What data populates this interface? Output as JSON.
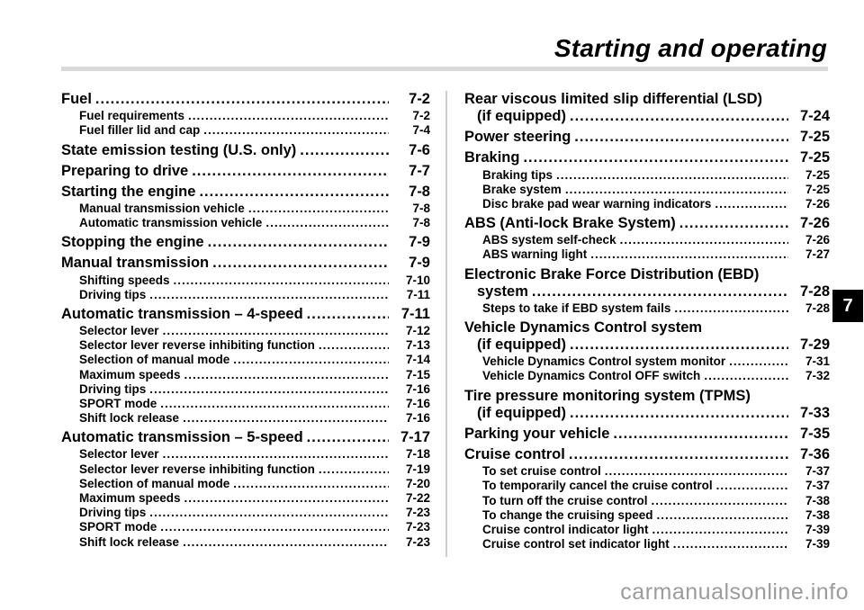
{
  "header": {
    "title": "Starting and operating"
  },
  "chapter_tab": {
    "label": "7"
  },
  "watermark": {
    "text": "carmanualsonline.info"
  },
  "toc": {
    "left_column": [
      {
        "level": 1,
        "label": "Fuel",
        "page": "7-2"
      },
      {
        "level": 2,
        "label": "Fuel requirements",
        "page": "7-2"
      },
      {
        "level": 2,
        "label": "Fuel filler lid and cap",
        "page": "7-4"
      },
      {
        "level": 1,
        "label": "State emission testing (U.S. only)",
        "page": "7-6"
      },
      {
        "level": 1,
        "label": "Preparing to drive",
        "page": "7-7"
      },
      {
        "level": 1,
        "label": "Starting the engine",
        "page": "7-8"
      },
      {
        "level": 2,
        "label": "Manual transmission vehicle",
        "page": "7-8"
      },
      {
        "level": 2,
        "label": "Automatic transmission vehicle",
        "page": "7-8"
      },
      {
        "level": 1,
        "label": "Stopping the engine",
        "page": "7-9"
      },
      {
        "level": 1,
        "label": "Manual transmission",
        "page": "7-9"
      },
      {
        "level": 2,
        "label": "Shifting speeds",
        "page": "7-10"
      },
      {
        "level": 2,
        "label": "Driving tips",
        "page": "7-11"
      },
      {
        "level": 1,
        "label": "Automatic transmission – 4-speed",
        "page": "7-11"
      },
      {
        "level": 2,
        "label": "Selector lever",
        "page": "7-12"
      },
      {
        "level": 2,
        "label": "Selector lever reverse inhibiting function",
        "page": "7-13"
      },
      {
        "level": 2,
        "label": "Selection of manual mode",
        "page": "7-14"
      },
      {
        "level": 2,
        "label": "Maximum speeds",
        "page": "7-15"
      },
      {
        "level": 2,
        "label": "Driving tips",
        "page": "7-16"
      },
      {
        "level": 2,
        "label": "SPORT mode",
        "page": "7-16"
      },
      {
        "level": 2,
        "label": "Shift lock release",
        "page": "7-16"
      },
      {
        "level": 1,
        "label": "Automatic transmission – 5-speed",
        "page": "7-17"
      },
      {
        "level": 2,
        "label": "Selector lever",
        "page": "7-18"
      },
      {
        "level": 2,
        "label": "Selector lever reverse inhibiting function",
        "page": "7-19"
      },
      {
        "level": 2,
        "label": "Selection of manual mode",
        "page": "7-20"
      },
      {
        "level": 2,
        "label": "Maximum speeds",
        "page": "7-22"
      },
      {
        "level": 2,
        "label": "Driving tips",
        "page": "7-23"
      },
      {
        "level": 2,
        "label": "SPORT mode",
        "page": "7-23"
      },
      {
        "level": 2,
        "label": "Shift lock release",
        "page": "7-23"
      }
    ],
    "right_column": [
      {
        "level": 1,
        "label": "Rear viscous limited slip differential (LSD)",
        "label2": "(if equipped)",
        "page": "7-24"
      },
      {
        "level": 1,
        "label": "Power steering",
        "page": "7-25"
      },
      {
        "level": 1,
        "label": "Braking",
        "page": "7-25"
      },
      {
        "level": 2,
        "label": "Braking tips",
        "page": "7-25"
      },
      {
        "level": 2,
        "label": "Brake system",
        "page": "7-25"
      },
      {
        "level": 2,
        "label": "Disc brake pad wear warning indicators",
        "page": "7-26"
      },
      {
        "level": 1,
        "label": "ABS (Anti-lock Brake System)",
        "page": "7-26"
      },
      {
        "level": 2,
        "label": "ABS system self-check",
        "page": "7-26"
      },
      {
        "level": 2,
        "label": "ABS warning light",
        "page": "7-27"
      },
      {
        "level": 1,
        "label": "Electronic Brake Force Distribution (EBD)",
        "label2": "system",
        "page": "7-28"
      },
      {
        "level": 2,
        "label": "Steps to take if EBD system fails",
        "page": "7-28"
      },
      {
        "level": 1,
        "label": "Vehicle Dynamics Control system",
        "label2": "(if equipped)",
        "page": "7-29"
      },
      {
        "level": 2,
        "label": "Vehicle Dynamics Control system monitor",
        "page": "7-31"
      },
      {
        "level": 2,
        "label": "Vehicle Dynamics Control OFF switch",
        "page": "7-32"
      },
      {
        "level": 1,
        "label": "Tire pressure monitoring system (TPMS)",
        "label2": "(if equipped)",
        "page": "7-33"
      },
      {
        "level": 1,
        "label": "Parking your vehicle",
        "page": "7-35"
      },
      {
        "level": 1,
        "label": "Cruise control",
        "page": "7-36"
      },
      {
        "level": 2,
        "label": "To set cruise control",
        "page": "7-37"
      },
      {
        "level": 2,
        "label": "To temporarily cancel the cruise control",
        "page": "7-37"
      },
      {
        "level": 2,
        "label": "To turn off the cruise control",
        "page": "7-38"
      },
      {
        "level": 2,
        "label": "To change the cruising speed",
        "page": "7-38"
      },
      {
        "level": 2,
        "label": "Cruise control indicator light",
        "page": "7-39"
      },
      {
        "level": 2,
        "label": "Cruise control set indicator light",
        "page": "7-39"
      }
    ]
  }
}
